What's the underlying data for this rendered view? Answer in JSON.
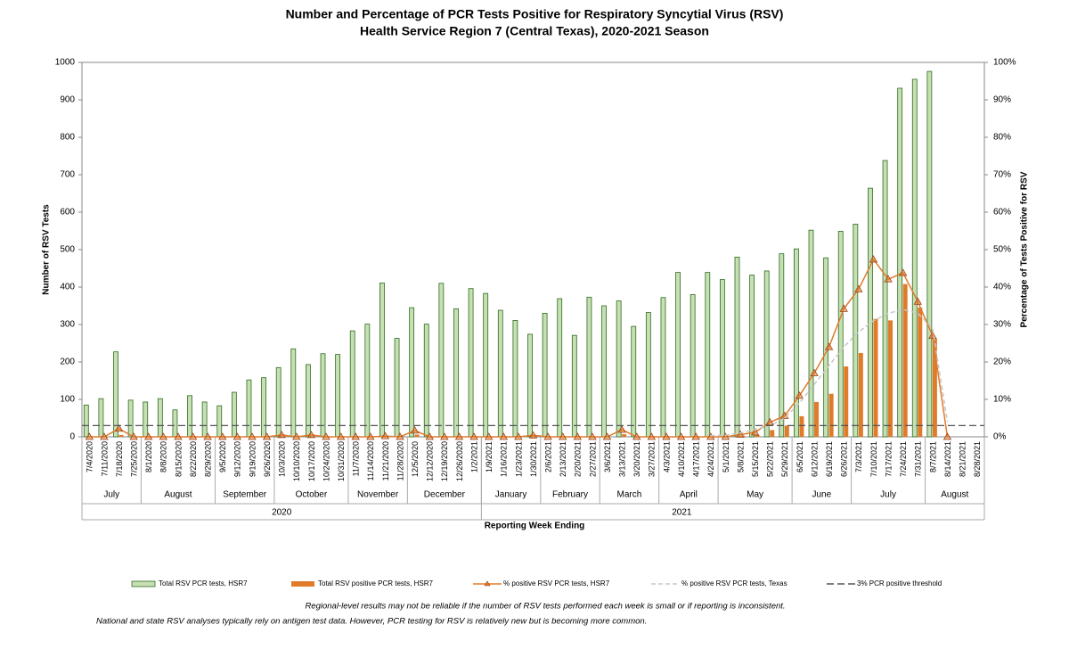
{
  "chart_data": {
    "type": "bar",
    "title": "Number and Percentage of PCR Tests Positive for Respiratory Syncytial Virus (RSV)",
    "subtitle": "Health Service Region 7 (Central Texas), 2020-2021 Season",
    "x_label": "Reporting Week Ending",
    "y_label": "Number of RSV Tests",
    "y2_label": "Percentage of Tests Positive for RSV",
    "categories": [
      "7/4/2020",
      "7/11/2020",
      "7/18/2020",
      "7/25/2020",
      "8/1/2020",
      "8/8/2020",
      "8/15/2020",
      "8/22/2020",
      "8/29/2020",
      "9/5/2020",
      "9/12/2020",
      "9/19/2020",
      "9/26/2020",
      "10/3/2020",
      "10/10/2020",
      "10/17/2020",
      "10/24/2020",
      "10/31/2020",
      "11/7/2020",
      "11/14/2020",
      "11/21/2020",
      "11/28/2020",
      "12/5/2020",
      "12/12/2020",
      "12/19/2020",
      "12/26/2020",
      "1/2/2021",
      "1/9/2021",
      "1/16/2021",
      "1/23/2021",
      "1/30/2021",
      "2/6/2021",
      "2/13/2021",
      "2/20/2021",
      "2/27/2021",
      "3/6/2021",
      "3/13/2021",
      "3/20/2021",
      "3/27/2021",
      "4/3/2021",
      "4/10/2021",
      "4/17/2021",
      "4/24/2021",
      "5/1/2021",
      "5/8/2021",
      "5/15/2021",
      "5/22/2021",
      "5/29/2021",
      "6/5/2021",
      "6/12/2021",
      "6/19/2021",
      "6/26/2021",
      "7/3/2021",
      "7/10/2021",
      "7/17/2021",
      "7/24/2021",
      "7/31/2021",
      "8/7/2021",
      "8/14/2021",
      "8/21/2021",
      "8/28/2021"
    ],
    "month_groups": [
      {
        "label": "July",
        "weeks": 4
      },
      {
        "label": "August",
        "weeks": 5
      },
      {
        "label": "September",
        "weeks": 4
      },
      {
        "label": "October",
        "weeks": 5
      },
      {
        "label": "November",
        "weeks": 4
      },
      {
        "label": "December",
        "weeks": 5
      },
      {
        "label": "January",
        "weeks": 4
      },
      {
        "label": "February",
        "weeks": 4
      },
      {
        "label": "March",
        "weeks": 4
      },
      {
        "label": "April",
        "weeks": 4
      },
      {
        "label": "May",
        "weeks": 5
      },
      {
        "label": "June",
        "weeks": 4
      },
      {
        "label": "July",
        "weeks": 5
      },
      {
        "label": "August",
        "weeks": 4
      }
    ],
    "year_groups": [
      {
        "label": "2020",
        "weeks": 27
      },
      {
        "label": "2021",
        "weeks": 34
      }
    ],
    "series": [
      {
        "name": "Total RSV PCR tests, HSR7",
        "type": "bar",
        "color": "#c6e0b4",
        "stroke": "#2f6b1f",
        "values": [
          85,
          102,
          227,
          98,
          93,
          102,
          72,
          110,
          93,
          83,
          119,
          152,
          158,
          185,
          235,
          193,
          222,
          220,
          283,
          301,
          411,
          263,
          345,
          301,
          410,
          342,
          396,
          383,
          338,
          311,
          274,
          330,
          369,
          271,
          373,
          350,
          363,
          295,
          332,
          372,
          439,
          380,
          439,
          420,
          480,
          432,
          443,
          489,
          502,
          552,
          478,
          549,
          568,
          664,
          738,
          931,
          955,
          976,
          null,
          null,
          null
        ]
      },
      {
        "name": "Total RSV positive PCR tests, HSR7",
        "type": "bar",
        "color": "#e07b2a",
        "values": [
          0,
          0,
          5,
          0,
          0,
          0,
          0,
          0,
          0,
          0,
          0,
          0,
          0,
          1,
          0,
          1,
          0,
          0,
          0,
          0,
          1,
          0,
          6,
          0,
          0,
          0,
          0,
          0,
          0,
          0,
          1,
          0,
          0,
          0,
          0,
          0,
          7,
          0,
          0,
          0,
          0,
          0,
          0,
          0,
          3,
          5,
          18,
          30,
          55,
          93,
          115,
          188,
          224,
          315,
          311,
          408,
          345,
          263,
          null,
          null,
          null
        ]
      },
      {
        "name": "% positive RSV PCR tests, HSR7",
        "type": "line",
        "axis": "y2",
        "color": "#e07b2a",
        "marker": "triangle",
        "values": [
          0,
          0,
          2.2,
          0,
          0,
          0,
          0,
          0,
          0,
          0,
          0,
          0,
          0,
          0.5,
          0,
          0.5,
          0,
          0,
          0,
          0,
          0.2,
          0,
          1.7,
          0,
          0,
          0,
          0,
          0,
          0,
          0,
          0.4,
          0,
          0,
          0,
          0,
          0,
          1.9,
          0,
          0,
          0,
          0,
          0,
          0,
          0,
          0.6,
          1.2,
          3.9,
          5.6,
          11,
          17,
          24,
          34.2,
          39.4,
          47.4,
          42.1,
          43.8,
          36.1,
          27,
          0,
          null,
          null
        ]
      },
      {
        "name": "% positive RSV PCR  tests, Texas",
        "type": "line",
        "axis": "y2",
        "color": "#c8c8c8",
        "dash": "5,3",
        "values": [
          null,
          null,
          null,
          null,
          null,
          null,
          null,
          null,
          null,
          null,
          null,
          null,
          null,
          null,
          null,
          null,
          null,
          null,
          null,
          null,
          null,
          null,
          null,
          null,
          null,
          null,
          null,
          null,
          null,
          null,
          null,
          null,
          null,
          null,
          null,
          null,
          null,
          null,
          null,
          null,
          null,
          null,
          0.3,
          0.5,
          1,
          2,
          3,
          5,
          9,
          14,
          19,
          24,
          28,
          31,
          33,
          34,
          33,
          29,
          4,
          null,
          null
        ]
      },
      {
        "name": "3% PCR positive threshold",
        "type": "hline",
        "axis": "y2",
        "color": "#555555",
        "dash": "8,4",
        "value": 3
      }
    ],
    "ylim": [
      0,
      1000
    ],
    "yticks": [
      0,
      100,
      200,
      300,
      400,
      500,
      600,
      700,
      800,
      900,
      1000
    ],
    "y2lim": [
      0,
      100
    ],
    "y2ticks": [
      {
        "value": 0,
        "label": "0%"
      },
      {
        "value": 10,
        "label": "10%"
      },
      {
        "value": 20,
        "label": "20%"
      },
      {
        "value": 30,
        "label": "30%"
      },
      {
        "value": 40,
        "label": "40%"
      },
      {
        "value": 50,
        "label": "50%"
      },
      {
        "value": 60,
        "label": "60%"
      },
      {
        "value": 70,
        "label": "70%"
      },
      {
        "value": 80,
        "label": "80%"
      },
      {
        "value": 90,
        "label": "90%"
      },
      {
        "value": 100,
        "label": "100%"
      }
    ],
    "grid": false,
    "legend": "bottom",
    "notes": [
      "Regional-level results may not be reliable if the number of RSV tests performed each week is small or if reporting is inconsistent.",
      "National and state RSV analyses typically rely on antigen test data. However, PCR testing for RSV is relatively new but is becoming more common."
    ]
  }
}
